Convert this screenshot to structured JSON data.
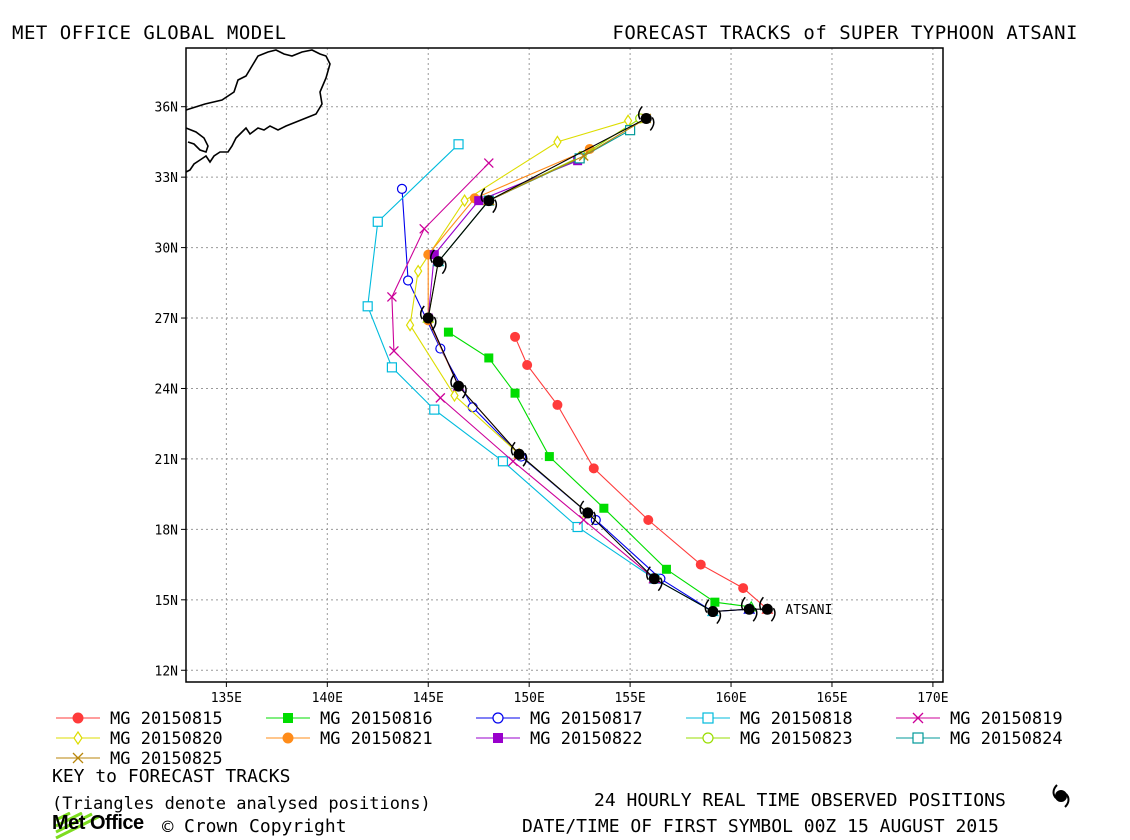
{
  "header": {
    "left": "MET OFFICE GLOBAL MODEL",
    "right": "FORECAST TRACKS of SUPER TYPHOON ATSANI"
  },
  "chart_data": {
    "type": "scatter",
    "title": "FORECAST TRACKS of SUPER TYPHOON ATSANI",
    "xlim": [
      133,
      170.5
    ],
    "ylim": [
      11.5,
      38.5
    ],
    "x_ticks": [
      135,
      140,
      145,
      150,
      155,
      160,
      165,
      170
    ],
    "x_tick_labels": [
      "135E",
      "140E",
      "145E",
      "150E",
      "155E",
      "160E",
      "165E",
      "170E"
    ],
    "y_ticks": [
      12,
      15,
      18,
      21,
      24,
      27,
      30,
      33,
      36
    ],
    "y_tick_labels": [
      "12N",
      "15N",
      "18N",
      "21N",
      "24N",
      "27N",
      "30N",
      "33N",
      "36N"
    ],
    "grid": true,
    "storm_label": "ATSANI",
    "observed": {
      "name": "24 HOURLY REAL TIME OBSERVED POSITIONS",
      "color": "#000000",
      "points": [
        [
          161.8,
          14.6
        ],
        [
          160.9,
          14.6
        ],
        [
          159.1,
          14.5
        ],
        [
          156.2,
          15.9
        ],
        [
          152.9,
          18.7
        ],
        [
          149.5,
          21.2
        ],
        [
          146.5,
          24.1
        ],
        [
          145.0,
          27.0
        ],
        [
          145.5,
          29.4
        ],
        [
          148.0,
          32.0
        ],
        [
          155.8,
          35.5
        ]
      ]
    },
    "series": [
      {
        "name": "MG 20150815",
        "color": "#ff3b3b",
        "marker": "circle-filled",
        "points": [
          [
            161.8,
            14.6
          ],
          [
            160.6,
            15.5
          ],
          [
            158.5,
            16.5
          ],
          [
            155.9,
            18.4
          ],
          [
            153.2,
            20.6
          ],
          [
            151.4,
            23.3
          ],
          [
            149.9,
            25.0
          ],
          [
            149.3,
            26.2
          ]
        ]
      },
      {
        "name": "MG 20150816",
        "color": "#00dd00",
        "marker": "square-filled",
        "points": [
          [
            161.0,
            14.7
          ],
          [
            159.2,
            14.9
          ],
          [
            156.8,
            16.3
          ],
          [
            153.7,
            18.9
          ],
          [
            151.0,
            21.1
          ],
          [
            149.3,
            23.8
          ],
          [
            148.0,
            25.3
          ],
          [
            146.0,
            26.4
          ]
        ]
      },
      {
        "name": "MG 20150817",
        "color": "#0000ee",
        "marker": "circle-open",
        "points": [
          [
            160.9,
            14.6
          ],
          [
            159.1,
            14.5
          ],
          [
            156.5,
            15.9
          ],
          [
            153.3,
            18.4
          ],
          [
            149.6,
            21.1
          ],
          [
            147.2,
            23.2
          ],
          [
            145.6,
            25.7
          ],
          [
            144.0,
            28.6
          ],
          [
            143.7,
            32.5
          ]
        ]
      },
      {
        "name": "MG 20150818",
        "color": "#00bbdd",
        "marker": "square-open",
        "points": [
          [
            159.1,
            14.5
          ],
          [
            156.2,
            15.9
          ],
          [
            152.4,
            18.1
          ],
          [
            148.7,
            20.9
          ],
          [
            145.3,
            23.1
          ],
          [
            143.2,
            24.9
          ],
          [
            142.0,
            27.5
          ],
          [
            142.5,
            31.1
          ],
          [
            146.5,
            34.4
          ]
        ]
      },
      {
        "name": "MG 20150819",
        "color": "#cc0099",
        "marker": "x",
        "points": [
          [
            156.2,
            15.9
          ],
          [
            152.7,
            18.4
          ],
          [
            149.2,
            20.9
          ],
          [
            145.6,
            23.6
          ],
          [
            143.3,
            25.6
          ],
          [
            143.2,
            27.9
          ],
          [
            144.8,
            30.8
          ],
          [
            148.0,
            33.6
          ]
        ]
      },
      {
        "name": "MG 20150820",
        "color": "#dddd00",
        "marker": "diamond-open",
        "points": [
          [
            152.9,
            18.7
          ],
          [
            149.5,
            21.2
          ],
          [
            146.3,
            23.7
          ],
          [
            144.1,
            26.7
          ],
          [
            144.5,
            29.0
          ],
          [
            146.8,
            32.0
          ],
          [
            151.4,
            34.5
          ],
          [
            154.9,
            35.4
          ]
        ]
      },
      {
        "name": "MG 20150821",
        "color": "#ff8c1a",
        "marker": "circle-filled",
        "points": [
          [
            149.5,
            21.2
          ],
          [
            146.5,
            24.1
          ],
          [
            145.0,
            26.9
          ],
          [
            145.0,
            29.7
          ],
          [
            147.3,
            32.1
          ],
          [
            153.0,
            34.2
          ]
        ]
      },
      {
        "name": "MG 20150822",
        "color": "#9900cc",
        "marker": "square-filled",
        "points": [
          [
            146.5,
            24.1
          ],
          [
            145.0,
            27.0
          ],
          [
            145.3,
            29.7
          ],
          [
            147.5,
            32.0
          ],
          [
            152.4,
            33.7
          ]
        ]
      },
      {
        "name": "MG 20150823",
        "color": "#99dd00",
        "marker": "circle-open",
        "points": [
          [
            145.0,
            27.0
          ],
          [
            145.5,
            29.4
          ],
          [
            148.0,
            32.0
          ],
          [
            152.6,
            33.9
          ],
          [
            155.5,
            35.5
          ]
        ]
      },
      {
        "name": "MG 20150824",
        "color": "#009999",
        "marker": "square-open",
        "points": [
          [
            145.5,
            29.4
          ],
          [
            148.0,
            32.0
          ],
          [
            152.5,
            33.8
          ],
          [
            155.0,
            35.0
          ]
        ]
      },
      {
        "name": "MG 20150825",
        "color": "#b8860b",
        "marker": "x",
        "points": [
          [
            148.0,
            32.0
          ],
          [
            152.7,
            33.9
          ],
          [
            155.8,
            35.5
          ]
        ]
      }
    ]
  },
  "footer": {
    "key_title": "KEY to FORECAST TRACKS",
    "key_note": "(Triangles denote analysed positions)",
    "obs_text": "24 HOURLY REAL TIME OBSERVED POSITIONS",
    "datetime": "DATE/TIME OF FIRST SYMBOL 00Z 15 AUGUST 2015",
    "logo_text": "Met Office",
    "copyright": "Crown Copyright"
  },
  "colors": {
    "frame": "#000000",
    "grid": "#9a9a9a",
    "land": "#000000"
  }
}
